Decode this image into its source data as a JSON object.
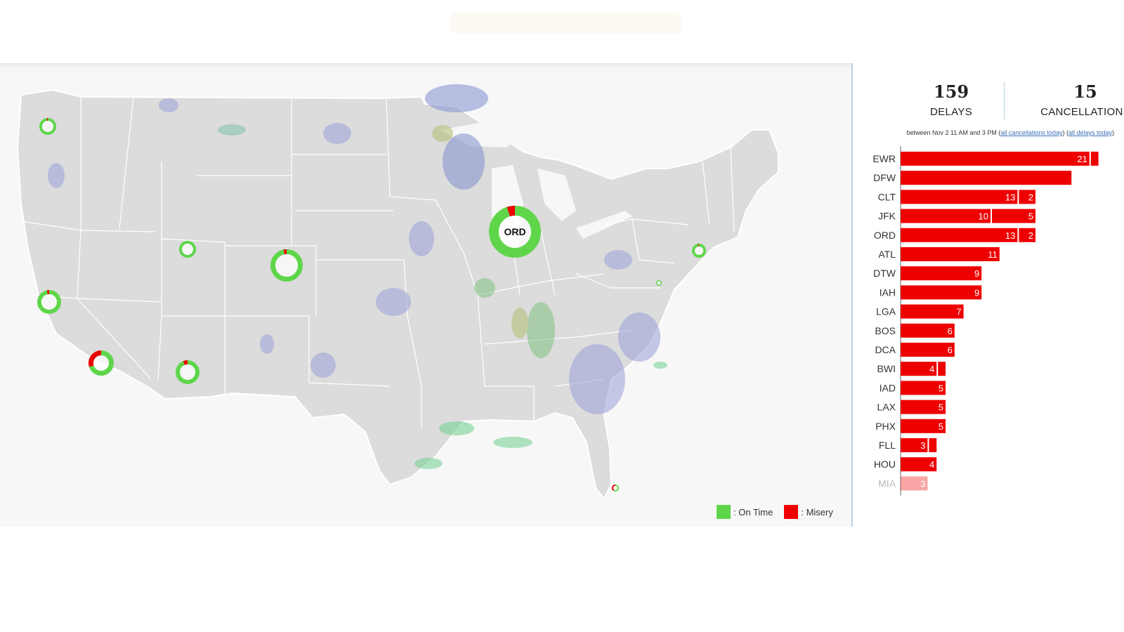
{
  "stats": {
    "delays": "159",
    "delays_label": "DELAYS",
    "cancellations": "15",
    "cancellations_label": "CANCELLATIONS",
    "range_prefix": "between Nov 2 11 AM and 3 PM (",
    "link_cancellations": "all cancellations today",
    "range_mid": ") (",
    "link_delays": "all delays today",
    "range_suffix": ")"
  },
  "legend": {
    "on_time_label": ": On Time",
    "misery_label": ": Misery",
    "on_time_color": "#5fd64a",
    "misery_color": "#ee0000"
  },
  "map": {
    "highlight_label": "ORD",
    "airport_ring_labels": [
      "SEA",
      "SLC",
      "DEN",
      "SFO",
      "LAX",
      "PHX",
      "ORD",
      "NYC",
      "DCA",
      "MIA"
    ],
    "misery_shares": [
      0.02,
      0.0,
      0.03,
      0.03,
      0.3,
      0.06,
      0.05,
      0.02,
      0.0,
      0.4
    ]
  },
  "chart_data": {
    "type": "bar",
    "categories": [
      "EWR",
      "DFW",
      "CLT",
      "JFK",
      "ORD",
      "ATL",
      "DTW",
      "IAH",
      "LGA",
      "BOS",
      "DCA",
      "BWI",
      "IAD",
      "LAX",
      "PHX",
      "FLL",
      "HOU",
      "MIA"
    ],
    "series": [
      {
        "values": [
          21,
          19,
          13,
          10,
          13,
          11,
          9,
          9,
          7,
          6,
          6,
          4,
          5,
          5,
          5,
          3,
          4,
          3
        ]
      },
      {
        "values": [
          1,
          0,
          2,
          5,
          2,
          0,
          0,
          0,
          0,
          0,
          0,
          1,
          0,
          0,
          0,
          1,
          0,
          0
        ]
      }
    ],
    "segment_labels": [
      [
        "21",
        "",
        "13",
        "10",
        "13",
        "11",
        "9",
        "9",
        "7",
        "6",
        "6",
        "4",
        "5",
        "5",
        "5",
        "3",
        "4",
        "3"
      ],
      [
        "",
        "",
        "2",
        "5",
        "2",
        "",
        "",
        "",
        "",
        "",
        "",
        "",
        "",
        "",
        "",
        "",
        "",
        ""
      ]
    ],
    "stacked": true,
    "orientation": "horizontal",
    "xlim": [
      0,
      22
    ],
    "bar_color": "#ee0000",
    "label_color": "#ffffff"
  }
}
